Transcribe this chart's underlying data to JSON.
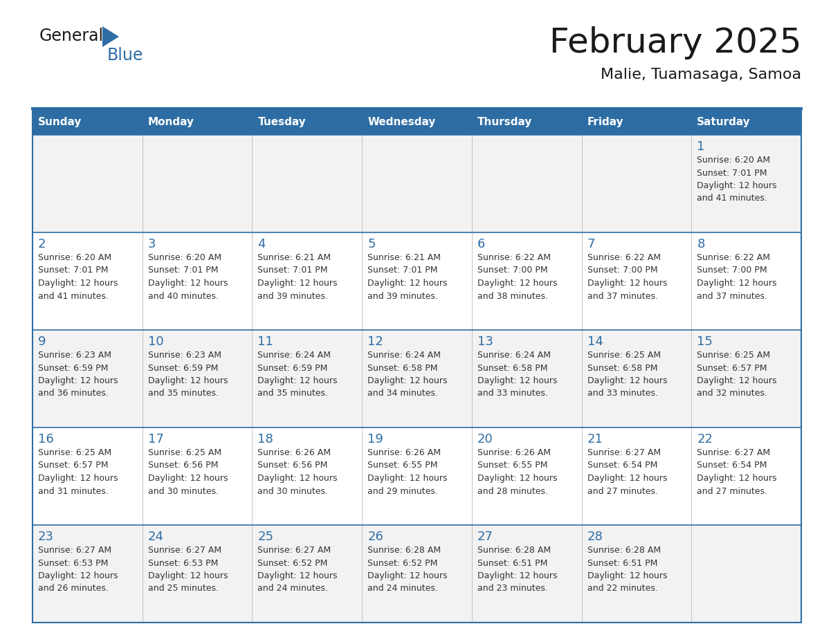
{
  "title": "February 2025",
  "subtitle": "Malie, Tuamasaga, Samoa",
  "header_bg": "#2E6DA4",
  "header_text": "#FFFFFF",
  "row_bg_light": "#F2F2F2",
  "row_bg_white": "#FFFFFF",
  "border_color": "#2E6DA4",
  "inner_border_color": "#AAAAAA",
  "day_headers": [
    "Sunday",
    "Monday",
    "Tuesday",
    "Wednesday",
    "Thursday",
    "Friday",
    "Saturday"
  ],
  "title_color": "#1a1a1a",
  "subtitle_color": "#1a1a1a",
  "day_number_color": "#2E6DA4",
  "cell_text_color": "#333333",
  "weeks": [
    [
      {
        "day": null,
        "sunrise": null,
        "sunset": null,
        "daylight_min": null
      },
      {
        "day": null,
        "sunrise": null,
        "sunset": null,
        "daylight_min": null
      },
      {
        "day": null,
        "sunrise": null,
        "sunset": null,
        "daylight_min": null
      },
      {
        "day": null,
        "sunrise": null,
        "sunset": null,
        "daylight_min": null
      },
      {
        "day": null,
        "sunrise": null,
        "sunset": null,
        "daylight_min": null
      },
      {
        "day": null,
        "sunrise": null,
        "sunset": null,
        "daylight_min": null
      },
      {
        "day": 1,
        "sunrise": "6:20 AM",
        "sunset": "7:01 PM",
        "daylight_min": "41 minutes."
      }
    ],
    [
      {
        "day": 2,
        "sunrise": "6:20 AM",
        "sunset": "7:01 PM",
        "daylight_min": "41 minutes."
      },
      {
        "day": 3,
        "sunrise": "6:20 AM",
        "sunset": "7:01 PM",
        "daylight_min": "40 minutes."
      },
      {
        "day": 4,
        "sunrise": "6:21 AM",
        "sunset": "7:01 PM",
        "daylight_min": "39 minutes."
      },
      {
        "day": 5,
        "sunrise": "6:21 AM",
        "sunset": "7:01 PM",
        "daylight_min": "39 minutes."
      },
      {
        "day": 6,
        "sunrise": "6:22 AM",
        "sunset": "7:00 PM",
        "daylight_min": "38 minutes."
      },
      {
        "day": 7,
        "sunrise": "6:22 AM",
        "sunset": "7:00 PM",
        "daylight_min": "37 minutes."
      },
      {
        "day": 8,
        "sunrise": "6:22 AM",
        "sunset": "7:00 PM",
        "daylight_min": "37 minutes."
      }
    ],
    [
      {
        "day": 9,
        "sunrise": "6:23 AM",
        "sunset": "6:59 PM",
        "daylight_min": "36 minutes."
      },
      {
        "day": 10,
        "sunrise": "6:23 AM",
        "sunset": "6:59 PM",
        "daylight_min": "35 minutes."
      },
      {
        "day": 11,
        "sunrise": "6:24 AM",
        "sunset": "6:59 PM",
        "daylight_min": "35 minutes."
      },
      {
        "day": 12,
        "sunrise": "6:24 AM",
        "sunset": "6:58 PM",
        "daylight_min": "34 minutes."
      },
      {
        "day": 13,
        "sunrise": "6:24 AM",
        "sunset": "6:58 PM",
        "daylight_min": "33 minutes."
      },
      {
        "day": 14,
        "sunrise": "6:25 AM",
        "sunset": "6:58 PM",
        "daylight_min": "33 minutes."
      },
      {
        "day": 15,
        "sunrise": "6:25 AM",
        "sunset": "6:57 PM",
        "daylight_min": "32 minutes."
      }
    ],
    [
      {
        "day": 16,
        "sunrise": "6:25 AM",
        "sunset": "6:57 PM",
        "daylight_min": "31 minutes."
      },
      {
        "day": 17,
        "sunrise": "6:25 AM",
        "sunset": "6:56 PM",
        "daylight_min": "30 minutes."
      },
      {
        "day": 18,
        "sunrise": "6:26 AM",
        "sunset": "6:56 PM",
        "daylight_min": "30 minutes."
      },
      {
        "day": 19,
        "sunrise": "6:26 AM",
        "sunset": "6:55 PM",
        "daylight_min": "29 minutes."
      },
      {
        "day": 20,
        "sunrise": "6:26 AM",
        "sunset": "6:55 PM",
        "daylight_min": "28 minutes."
      },
      {
        "day": 21,
        "sunrise": "6:27 AM",
        "sunset": "6:54 PM",
        "daylight_min": "27 minutes."
      },
      {
        "day": 22,
        "sunrise": "6:27 AM",
        "sunset": "6:54 PM",
        "daylight_min": "27 minutes."
      }
    ],
    [
      {
        "day": 23,
        "sunrise": "6:27 AM",
        "sunset": "6:53 PM",
        "daylight_min": "26 minutes."
      },
      {
        "day": 24,
        "sunrise": "6:27 AM",
        "sunset": "6:53 PM",
        "daylight_min": "25 minutes."
      },
      {
        "day": 25,
        "sunrise": "6:27 AM",
        "sunset": "6:52 PM",
        "daylight_min": "24 minutes."
      },
      {
        "day": 26,
        "sunrise": "6:28 AM",
        "sunset": "6:52 PM",
        "daylight_min": "24 minutes."
      },
      {
        "day": 27,
        "sunrise": "6:28 AM",
        "sunset": "6:51 PM",
        "daylight_min": "23 minutes."
      },
      {
        "day": 28,
        "sunrise": "6:28 AM",
        "sunset": "6:51 PM",
        "daylight_min": "22 minutes."
      },
      {
        "day": null,
        "sunrise": null,
        "sunset": null,
        "daylight_min": null
      }
    ]
  ]
}
